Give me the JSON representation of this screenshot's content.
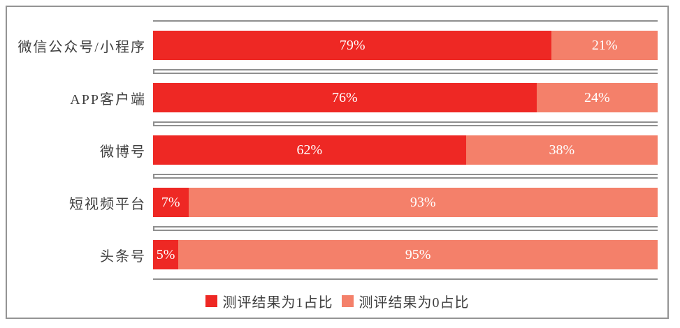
{
  "chart_data": {
    "type": "bar",
    "orientation": "horizontal",
    "stacked": true,
    "title": "",
    "xlabel": "",
    "ylabel": "",
    "categories": [
      "微信公众号/小程序",
      "APP客户端",
      "微博号",
      "短视频平台",
      "头条号"
    ],
    "series": [
      {
        "name": "测评结果为1占比",
        "color": "#ee2824",
        "values": [
          79,
          76,
          62,
          7,
          5
        ]
      },
      {
        "name": "测评结果为0占比",
        "color": "#f4806a",
        "values": [
          21,
          24,
          38,
          93,
          95
        ]
      }
    ],
    "value_labels": [
      [
        "79%",
        "21%"
      ],
      [
        "76%",
        "24%"
      ],
      [
        "62%",
        "38%"
      ],
      [
        "7%",
        "93%"
      ],
      [
        "5%",
        "95%"
      ]
    ],
    "xlim": [
      0,
      100
    ],
    "grid": "lane-borders",
    "legend_position": "bottom"
  },
  "styles": {
    "background": "#ffffff",
    "frame_border_color": "#949494",
    "lane_border_color": "#8f8f8f",
    "axis_line_color": "#8f8f8f",
    "label_text_color": "#3f3f3f",
    "value_label_color": "#ffffff"
  }
}
